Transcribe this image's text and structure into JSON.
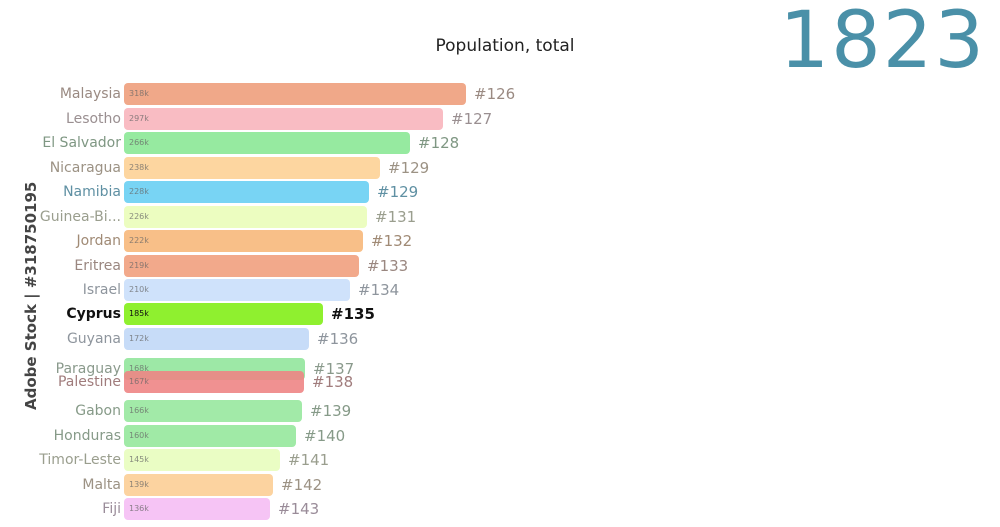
{
  "year": "1823",
  "watermark": "Adobe Stock | #318750195",
  "chart_data": {
    "type": "bar",
    "orientation": "horizontal",
    "title": "Population, total",
    "rows": [
      {
        "country": "Malaysia",
        "value": 318,
        "value_label": "318k",
        "rank": "#126",
        "color": "#f0a889",
        "text_color": "#9a8a82"
      },
      {
        "country": "Lesotho",
        "value": 297,
        "value_label": "297k",
        "rank": "#127",
        "color": "#f9bcc3",
        "text_color": "#9a8f91"
      },
      {
        "country": "El Salvador",
        "value": 266,
        "value_label": "266k",
        "rank": "#128",
        "color": "#96eaa0",
        "text_color": "#7f9783"
      },
      {
        "country": "Nicaragua",
        "value": 238,
        "value_label": "238k",
        "rank": "#129",
        "color": "#fdd6a0",
        "text_color": "#9c9284"
      },
      {
        "country": "Namibia",
        "value": 228,
        "value_label": "228k",
        "rank": "#129",
        "color": "#78d4f4",
        "text_color": "#5f90a3"
      },
      {
        "country": "Guinea-Bi...",
        "value": 226,
        "value_label": "226k",
        "rank": "#131",
        "color": "#ecfdc0",
        "text_color": "#9a9e8e"
      },
      {
        "country": "Jordan",
        "value": 222,
        "value_label": "222k",
        "rank": "#132",
        "color": "#f8bf88",
        "text_color": "#a08a75"
      },
      {
        "country": "Eritrea",
        "value": 219,
        "value_label": "219k",
        "rank": "#133",
        "color": "#f2a98b",
        "text_color": "#9a8780"
      },
      {
        "country": "Israel",
        "value": 210,
        "value_label": "210k",
        "rank": "#134",
        "color": "#cfe2fb",
        "text_color": "#8e959d"
      },
      {
        "country": "Cyprus",
        "value": 185,
        "value_label": "185k",
        "rank": "#135",
        "color": "#8ff02f",
        "text_color": "#111111",
        "highlight": true
      },
      {
        "country": "Guyana",
        "value": 172,
        "value_label": "172k",
        "rank": "#136",
        "color": "#c7dcf8",
        "text_color": "#8e959d"
      },
      {
        "country": "Paraguay",
        "value": 168,
        "value_label": "168k",
        "rank": "#137",
        "color": "#9de8a6",
        "text_color": "#8a9a8c"
      },
      {
        "country": "Palestine",
        "value": 167,
        "value_label": "167k",
        "rank": "#138",
        "color": "#ee8585",
        "text_color": "#a07c7c"
      },
      {
        "country": "Gabon",
        "value": 166,
        "value_label": "166k",
        "rank": "#139",
        "color": "#a2eaa8",
        "text_color": "#869a88"
      },
      {
        "country": "Honduras",
        "value": 160,
        "value_label": "160k",
        "rank": "#140",
        "color": "#a0eaa6",
        "text_color": "#869a88"
      },
      {
        "country": "Timor-Leste",
        "value": 145,
        "value_label": "145k",
        "rank": "#141",
        "color": "#eafdc4",
        "text_color": "#9a9e8e"
      },
      {
        "country": "Malta",
        "value": 139,
        "value_label": "139k",
        "rank": "#142",
        "color": "#fcd3a0",
        "text_color": "#9c9284"
      },
      {
        "country": "Fiji",
        "value": 136,
        "value_label": "136k",
        "rank": "#143",
        "color": "#f6c4f5",
        "text_color": "#9a8c99"
      }
    ]
  }
}
